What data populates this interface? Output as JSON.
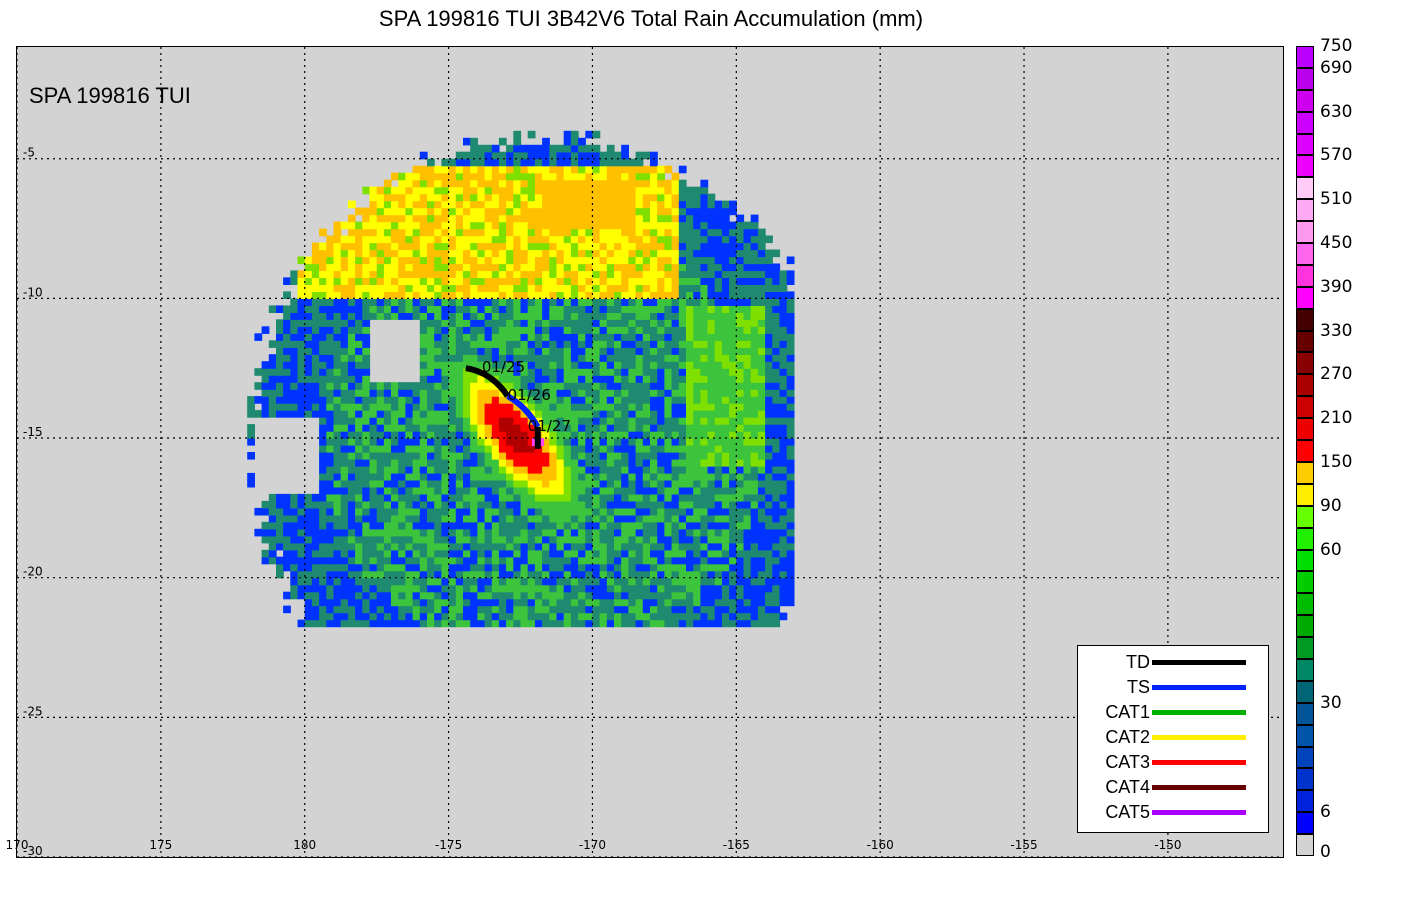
{
  "title": "SPA 199816 TUI 3B42V6 Total Rain Accumulation (mm)",
  "storm_label": "SPA 199816 TUI",
  "map": {
    "extent": {
      "lon_west": 170,
      "lon_east": -146,
      "lat_north": -1,
      "lat_south": -30
    },
    "lon_ticks": [
      {
        "lon": 170,
        "label": "170"
      },
      {
        "lon": 175,
        "label": "175"
      },
      {
        "lon": 180,
        "label": "180"
      },
      {
        "lon": 185,
        "label": "-175"
      },
      {
        "lon": 190,
        "label": "-170"
      },
      {
        "lon": 195,
        "label": "-165"
      },
      {
        "lon": 200,
        "label": "-160"
      },
      {
        "lon": 205,
        "label": "-155"
      },
      {
        "lon": 210,
        "label": "-150"
      }
    ],
    "lat_ticks": [
      {
        "lat": -5,
        "label": "-5"
      },
      {
        "lat": -10,
        "label": "-10"
      },
      {
        "lat": -15,
        "label": "-15"
      },
      {
        "lat": -20,
        "label": "-20"
      },
      {
        "lat": -25,
        "label": "-25"
      },
      {
        "lat": -30,
        "label": "-30"
      }
    ],
    "background_color": "#d3d3d3",
    "rain_field": {
      "description_hidden": true,
      "center": {
        "lon": 188.2,
        "lat": -15.0
      },
      "intensity_colors": {
        "blue": "#0033ff",
        "teal": "#1f8a70",
        "green": "#3cc43c",
        "lightgreen": "#7fe000",
        "yellow": "#ffff00",
        "orange": "#ffc000",
        "red": "#ff0000",
        "darkred": "#b00000",
        "magenta": "#ff44ff"
      }
    }
  },
  "track": [
    {
      "date": "01/25",
      "lon": 185.6,
      "lat": -12.5,
      "category": "TD"
    },
    {
      "date": "01/26",
      "lon": 187.4,
      "lat": -13.5,
      "category": "TS"
    },
    {
      "date": "01/27",
      "lon": 188.1,
      "lat": -14.6,
      "category": "TD"
    }
  ],
  "legend": [
    {
      "label": "TD",
      "color": "#000000"
    },
    {
      "label": "TS",
      "color": "#0022ff"
    },
    {
      "label": "CAT1",
      "color": "#00b000"
    },
    {
      "label": "CAT2",
      "color": "#ffee00"
    },
    {
      "label": "CAT3",
      "color": "#ff0000"
    },
    {
      "label": "CAT4",
      "color": "#660000"
    },
    {
      "label": "CAT5",
      "color": "#aa00ff"
    }
  ],
  "colorbar": {
    "cells": [
      "#d3d3d3",
      "#0000ff",
      "#0022dd",
      "#0033cc",
      "#0044bb",
      "#0055aa",
      "#005599",
      "#006677",
      "#008866",
      "#009922",
      "#00aa00",
      "#00bb00",
      "#00cc00",
      "#00dd00",
      "#22ee00",
      "#66ff00",
      "#ffee00",
      "#ffcc00",
      "#ff0000",
      "#ee0000",
      "#cc0000",
      "#aa0000",
      "#880000",
      "#660000",
      "#440000",
      "#ff00ff",
      "#ff33dd",
      "#ff66ee",
      "#ff99f0",
      "#ffaaf4",
      "#ffccf8",
      "#ee00ff",
      "#dd00ff",
      "#cc00ff",
      "#cc00ee",
      "#bb00ee",
      "#bb00ff"
    ],
    "labels": [
      {
        "value": "0",
        "cell_index": 0
      },
      {
        "value": "6",
        "cell_index": 2
      },
      {
        "value": "30",
        "cell_index": 7
      },
      {
        "value": "60",
        "cell_index": 14
      },
      {
        "value": "90",
        "cell_index": 16
      },
      {
        "value": "150",
        "cell_index": 18
      },
      {
        "value": "210",
        "cell_index": 20
      },
      {
        "value": "270",
        "cell_index": 22
      },
      {
        "value": "330",
        "cell_index": 24
      },
      {
        "value": "390",
        "cell_index": 26
      },
      {
        "value": "450",
        "cell_index": 28
      },
      {
        "value": "510",
        "cell_index": 30
      },
      {
        "value": "570",
        "cell_index": 32
      },
      {
        "value": "630",
        "cell_index": 34
      },
      {
        "value": "690",
        "cell_index": 36
      },
      {
        "value": "750",
        "cell_index": 37
      }
    ]
  }
}
